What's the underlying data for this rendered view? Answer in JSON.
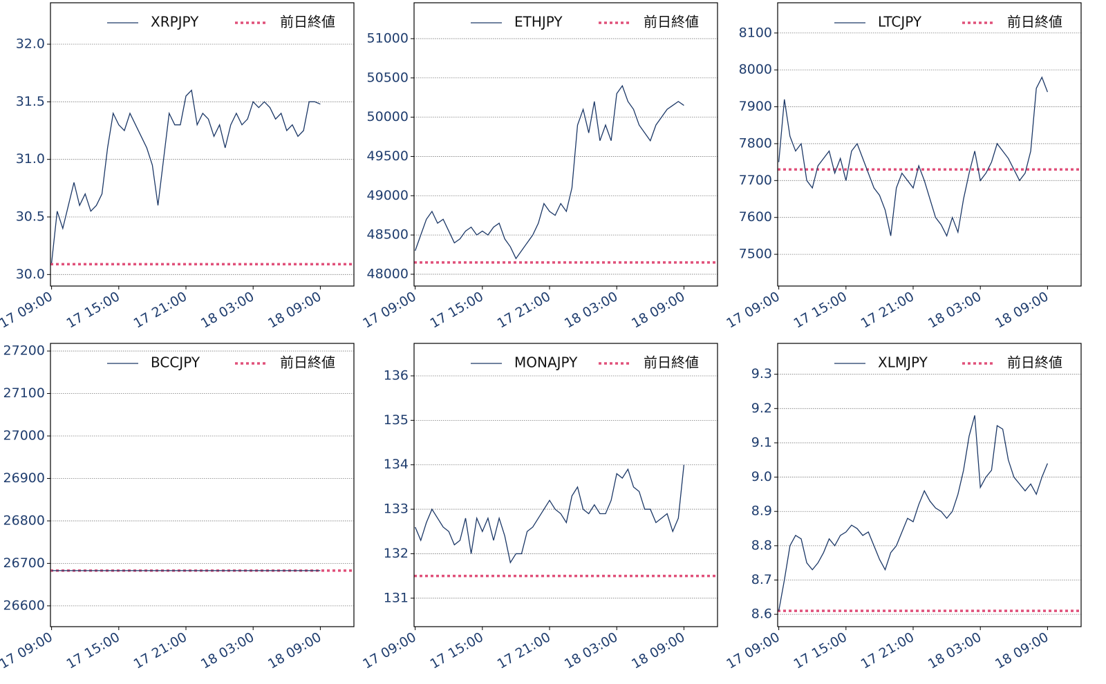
{
  "chart_data": [
    {
      "type": "line",
      "x": [
        0,
        0.5,
        1,
        1.5,
        2,
        2.5,
        3,
        3.5,
        4,
        4.5,
        5,
        5.5,
        6,
        6.5,
        7,
        7.5,
        8,
        8.5,
        9,
        9.5,
        10,
        10.5,
        11,
        11.5,
        12,
        12.5,
        13,
        13.5,
        14,
        14.5,
        15,
        15.5,
        16,
        16.5,
        17,
        17.5,
        18,
        18.5,
        19,
        19.5,
        20,
        20.5,
        21,
        21.5,
        22,
        22.5,
        23,
        23.5,
        24
      ],
      "series": [
        {
          "name": "XRPJPY",
          "color": "#1b3766",
          "values": [
            30.1,
            30.55,
            30.4,
            30.6,
            30.8,
            30.6,
            30.7,
            30.55,
            30.6,
            30.7,
            31.1,
            31.4,
            31.3,
            31.25,
            31.4,
            31.3,
            31.2,
            31.1,
            30.95,
            30.6,
            31.0,
            31.4,
            31.3,
            31.3,
            31.55,
            31.6,
            31.3,
            31.4,
            31.35,
            31.2,
            31.3,
            31.1,
            31.3,
            31.4,
            31.3,
            31.35,
            31.5,
            31.45,
            31.5,
            31.45,
            31.35,
            31.4,
            31.25,
            31.3,
            31.2,
            31.25,
            31.5,
            31.5,
            31.48
          ]
        }
      ],
      "reference": {
        "name": "前日終値",
        "value": 30.09,
        "color": "#e0507a"
      },
      "xlim": [
        -0.1,
        27
      ],
      "xticks": [
        {
          "value": 0,
          "label": "17 09:00"
        },
        {
          "value": 6,
          "label": "17 15:00"
        },
        {
          "value": 12,
          "label": "17 21:00"
        },
        {
          "value": 18,
          "label": "18 03:00"
        },
        {
          "value": 24,
          "label": "18 09:00"
        }
      ],
      "ylim": [
        29.9,
        32.36
      ],
      "yticks": [
        {
          "value": 30,
          "label": "30.0"
        },
        30.5,
        {
          "value": 31,
          "label": "31.0"
        },
        31.5,
        {
          "value": 32,
          "label": "32.0"
        }
      ],
      "grid": true,
      "legend": "upper right"
    },
    {
      "type": "line",
      "x": [
        0,
        0.5,
        1,
        1.5,
        2,
        2.5,
        3,
        3.5,
        4,
        4.5,
        5,
        5.5,
        6,
        6.5,
        7,
        7.5,
        8,
        8.5,
        9,
        9.5,
        10,
        10.5,
        11,
        11.5,
        12,
        12.5,
        13,
        13.5,
        14,
        14.5,
        15,
        15.5,
        16,
        16.5,
        17,
        17.5,
        18,
        18.5,
        19,
        19.5,
        20,
        20.5,
        21,
        21.5,
        22,
        22.5,
        23,
        23.5,
        24
      ],
      "series": [
        {
          "name": "ETHJPY",
          "color": "#1b3766",
          "values": [
            48300,
            48500,
            48700,
            48800,
            48650,
            48700,
            48550,
            48400,
            48450,
            48550,
            48600,
            48500,
            48550,
            48500,
            48600,
            48650,
            48450,
            48350,
            48200,
            48300,
            48400,
            48500,
            48650,
            48900,
            48800,
            48750,
            48900,
            48800,
            49100,
            49900,
            50100,
            49800,
            50200,
            49700,
            49900,
            49700,
            50300,
            50400,
            50200,
            50100,
            49900,
            49800,
            49700,
            49900,
            50000,
            50100,
            50150,
            50200,
            50150
          ]
        }
      ],
      "reference": {
        "name": "前日終値",
        "value": 48150,
        "color": "#e0507a"
      },
      "xlim": [
        -0.1,
        27
      ],
      "xticks": [
        {
          "value": 0,
          "label": "17 09:00"
        },
        {
          "value": 6,
          "label": "17 15:00"
        },
        {
          "value": 12,
          "label": "17 21:00"
        },
        {
          "value": 18,
          "label": "18 03:00"
        },
        {
          "value": 24,
          "label": "18 09:00"
        }
      ],
      "ylim": [
        47850,
        51457
      ],
      "yticks": [
        48000,
        48500,
        49000,
        49500,
        50000,
        50500,
        51000
      ],
      "grid": true,
      "legend": "upper right"
    },
    {
      "type": "line",
      "x": [
        0,
        0.5,
        1,
        1.5,
        2,
        2.5,
        3,
        3.5,
        4,
        4.5,
        5,
        5.5,
        6,
        6.5,
        7,
        7.5,
        8,
        8.5,
        9,
        9.5,
        10,
        10.5,
        11,
        11.5,
        12,
        12.5,
        13,
        13.5,
        14,
        14.5,
        15,
        15.5,
        16,
        16.5,
        17,
        17.5,
        18,
        18.5,
        19,
        19.5,
        20,
        20.5,
        21,
        21.5,
        22,
        22.5,
        23,
        23.5,
        24
      ],
      "series": [
        {
          "name": "LTCJPY",
          "color": "#1b3766",
          "values": [
            7750,
            7920,
            7820,
            7780,
            7800,
            7700,
            7680,
            7740,
            7760,
            7780,
            7720,
            7760,
            7700,
            7780,
            7800,
            7760,
            7720,
            7680,
            7660,
            7620,
            7550,
            7680,
            7720,
            7700,
            7680,
            7740,
            7700,
            7650,
            7600,
            7580,
            7550,
            7600,
            7560,
            7650,
            7720,
            7780,
            7700,
            7720,
            7750,
            7800,
            7780,
            7760,
            7730,
            7700,
            7720,
            7780,
            7950,
            7980,
            7940
          ]
        }
      ],
      "reference": {
        "name": "前日終値",
        "value": 7730,
        "color": "#e0507a"
      },
      "xlim": [
        -0.1,
        27
      ],
      "xticks": [
        {
          "value": 0,
          "label": "17 09:00"
        },
        {
          "value": 6,
          "label": "17 15:00"
        },
        {
          "value": 12,
          "label": "17 21:00"
        },
        {
          "value": 18,
          "label": "18 03:00"
        },
        {
          "value": 24,
          "label": "18 09:00"
        }
      ],
      "ylim": [
        7414,
        8182
      ],
      "yticks": [
        7500,
        7600,
        7700,
        7800,
        7900,
        8000,
        8100
      ],
      "grid": true,
      "legend": "upper right"
    },
    {
      "type": "line",
      "x": [
        0,
        24
      ],
      "series": [
        {
          "name": "BCCJPY",
          "color": "#1b3766",
          "values": [
            26683,
            26683
          ]
        }
      ],
      "reference": {
        "name": "前日終値",
        "value": 26683,
        "color": "#e0507a"
      },
      "xlim": [
        -0.1,
        27
      ],
      "xticks": [
        {
          "value": 0,
          "label": "17 09:00"
        },
        {
          "value": 6,
          "label": "17 15:00"
        },
        {
          "value": 12,
          "label": "17 21:00"
        },
        {
          "value": 18,
          "label": "18 03:00"
        },
        {
          "value": 24,
          "label": "18 09:00"
        }
      ],
      "ylim": [
        26551,
        27218
      ],
      "yticks": [
        26600,
        26700,
        26800,
        26900,
        27000,
        27100,
        27200
      ],
      "grid": true,
      "legend": "upper right"
    },
    {
      "type": "line",
      "x": [
        0,
        0.5,
        1,
        1.5,
        2,
        2.5,
        3,
        3.5,
        4,
        4.5,
        5,
        5.5,
        6,
        6.5,
        7,
        7.5,
        8,
        8.5,
        9,
        9.5,
        10,
        10.5,
        11,
        11.5,
        12,
        12.5,
        13,
        13.5,
        14,
        14.5,
        15,
        15.5,
        16,
        16.5,
        17,
        17.5,
        18,
        18.5,
        19,
        19.5,
        20,
        20.5,
        21,
        21.5,
        22,
        22.5,
        23,
        23.5,
        24
      ],
      "series": [
        {
          "name": "MONAJPY",
          "color": "#1b3766",
          "values": [
            132.6,
            132.3,
            132.7,
            133.0,
            132.8,
            132.6,
            132.5,
            132.2,
            132.3,
            132.8,
            132.0,
            132.8,
            132.5,
            132.8,
            132.3,
            132.8,
            132.4,
            131.8,
            132.0,
            132.0,
            132.5,
            132.6,
            132.8,
            133.0,
            133.2,
            133.0,
            132.9,
            132.7,
            133.3,
            133.5,
            133.0,
            132.9,
            133.1,
            132.9,
            132.9,
            133.2,
            133.8,
            133.7,
            133.9,
            133.5,
            133.4,
            133.0,
            133.0,
            132.7,
            132.8,
            132.9,
            132.5,
            132.8,
            134.0
          ]
        }
      ],
      "reference": {
        "name": "前日終値",
        "value": 131.5,
        "color": "#e0507a"
      },
      "xlim": [
        -0.1,
        27
      ],
      "xticks": [
        {
          "value": 0,
          "label": "17 09:00"
        },
        {
          "value": 6,
          "label": "17 15:00"
        },
        {
          "value": 12,
          "label": "17 21:00"
        },
        {
          "value": 18,
          "label": "18 03:00"
        },
        {
          "value": 24,
          "label": "18 09:00"
        }
      ],
      "ylim": [
        130.36,
        136.73
      ],
      "yticks": [
        131,
        132,
        133,
        134,
        135,
        136
      ],
      "grid": true,
      "legend": "upper right"
    },
    {
      "type": "line",
      "x": [
        0,
        0.5,
        1,
        1.5,
        2,
        2.5,
        3,
        3.5,
        4,
        4.5,
        5,
        5.5,
        6,
        6.5,
        7,
        7.5,
        8,
        8.5,
        9,
        9.5,
        10,
        10.5,
        11,
        11.5,
        12,
        12.5,
        13,
        13.5,
        14,
        14.5,
        15,
        15.5,
        16,
        16.5,
        17,
        17.5,
        18,
        18.5,
        19,
        19.5,
        20,
        20.5,
        21,
        21.5,
        22,
        22.5,
        23,
        23.5,
        24
      ],
      "series": [
        {
          "name": "XLMJPY",
          "color": "#1b3766",
          "values": [
            8.61,
            8.7,
            8.8,
            8.83,
            8.82,
            8.75,
            8.73,
            8.75,
            8.78,
            8.82,
            8.8,
            8.83,
            8.84,
            8.86,
            8.85,
            8.83,
            8.84,
            8.8,
            8.76,
            8.73,
            8.78,
            8.8,
            8.84,
            8.88,
            8.87,
            8.92,
            8.96,
            8.93,
            8.91,
            8.9,
            8.88,
            8.9,
            8.95,
            9.02,
            9.12,
            9.18,
            8.97,
            9.0,
            9.02,
            9.15,
            9.14,
            9.05,
            9.0,
            8.98,
            8.96,
            8.98,
            8.95,
            9.0,
            9.04
          ]
        }
      ],
      "reference": {
        "name": "前日終値",
        "value": 8.61,
        "color": "#e0507a"
      },
      "xlim": [
        -0.1,
        27
      ],
      "xticks": [
        {
          "value": 0,
          "label": "17 09:00"
        },
        {
          "value": 6,
          "label": "17 15:00"
        },
        {
          "value": 12,
          "label": "17 21:00"
        },
        {
          "value": 18,
          "label": "18 03:00"
        },
        {
          "value": 24,
          "label": "18 09:00"
        }
      ],
      "ylim": [
        8.564,
        9.39
      ],
      "yticks": [
        8.6,
        8.7,
        8.8,
        8.9,
        {
          "value": 9,
          "label": "9.0"
        },
        9.1,
        9.2,
        9.3
      ],
      "grid": true,
      "legend": "upper right"
    }
  ]
}
